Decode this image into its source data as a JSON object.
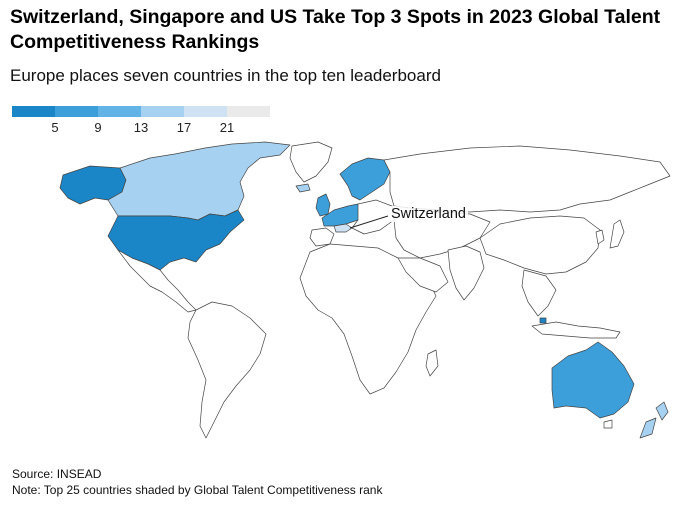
{
  "header": {
    "title": "Switzerland, Singapore and US Take Top 3 Spots in 2023 Global Talent Competitiveness Rankings",
    "subtitle": "Europe places seven countries in the top ten leaderboard"
  },
  "legend": {
    "ticks": [
      "5",
      "9",
      "13",
      "17",
      "21"
    ],
    "colors": [
      "#1a86c8",
      "#3d9fda",
      "#62b3e6",
      "#a7d1f0",
      "#cfe2f3",
      "#eaeaea"
    ]
  },
  "colors": {
    "rank_1_4": "#1a86c8",
    "rank_5_8": "#3d9fda",
    "rank_9_12": "#62b3e6",
    "rank_13_16": "#a7d1f0",
    "rank_17_20": "#cfe2f3",
    "unranked": "#ffffff",
    "border": "#444444"
  },
  "annotation": {
    "label": "Switzerland"
  },
  "footer": {
    "source": "Source: INSEAD",
    "note": "Note: Top 25 countries shaded by Global Talent Competitiveness rank"
  }
}
